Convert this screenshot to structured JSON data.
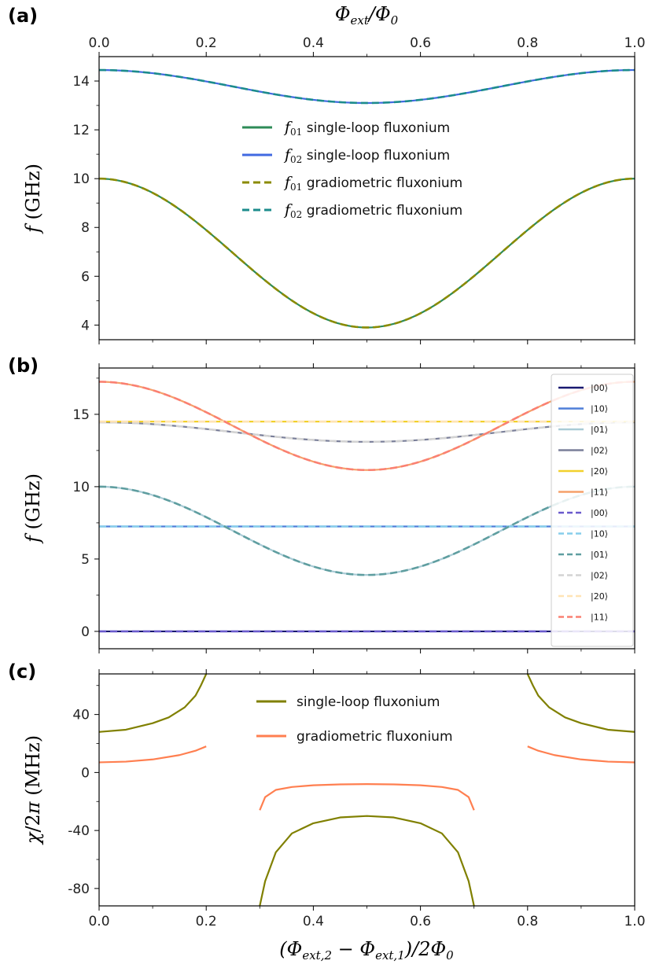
{
  "chart_data": [
    {
      "id": "a",
      "panel_label": "(a)",
      "type": "line",
      "top_xlabel": "Φ_ext/Φ_0",
      "ylabel": "f (GHz)",
      "xlim": [
        0,
        1
      ],
      "ylim": [
        3.4,
        15
      ],
      "xticks": [
        0.0,
        0.2,
        0.4,
        0.6,
        0.8,
        1.0
      ],
      "xtick_labels": [
        "0.0",
        "0.2",
        "0.4",
        "0.6",
        "0.8",
        "1.0"
      ],
      "yticks": [
        4,
        6,
        8,
        10,
        12,
        14
      ],
      "ytick_labels": [
        "4",
        "6",
        "8",
        "10",
        "12",
        "14"
      ],
      "series": [
        {
          "name": "f01 single-loop fluxonium",
          "sub": "01",
          "label": "single-loop fluxonium",
          "color": "#2e8b57",
          "dash": false,
          "formula": "cos",
          "params": [
            3.9,
            10.0
          ]
        },
        {
          "name": "f02 single-loop fluxonium",
          "sub": "02",
          "label": "single-loop fluxonium",
          "color": "#4169e1",
          "dash": false,
          "formula": "cos",
          "params": [
            13.1,
            14.45
          ]
        },
        {
          "name": "f01 gradiometric fluxonium",
          "sub": "01",
          "label": "gradiometric fluxonium",
          "color": "#8b8b00",
          "dash": true,
          "formula": "cos",
          "params": [
            3.9,
            10.0
          ]
        },
        {
          "name": "f02 gradiometric fluxonium",
          "sub": "02",
          "label": "gradiometric fluxonium",
          "color": "#1c8c8c",
          "dash": true,
          "formula": "cos",
          "params": [
            13.1,
            14.45
          ]
        }
      ]
    },
    {
      "id": "b",
      "panel_label": "(b)",
      "type": "line",
      "ylabel": "f (GHz)",
      "xlim": [
        0,
        1
      ],
      "ylim": [
        -1.2,
        18.2
      ],
      "yticks": [
        0,
        5,
        10,
        15
      ],
      "ytick_labels": [
        "0",
        "5",
        "10",
        "15"
      ],
      "series": [
        {
          "name": "|00⟩ solid",
          "label": "|00⟩",
          "color": "#191970",
          "dash": false,
          "formula": "const",
          "params": [
            0
          ]
        },
        {
          "name": "|10⟩ solid",
          "label": "|10⟩",
          "color": "#4f7fd9",
          "dash": false,
          "formula": "const",
          "params": [
            7.25
          ]
        },
        {
          "name": "|01⟩ solid",
          "label": "|01⟩",
          "color": "#a9cbd6",
          "dash": false,
          "formula": "cos",
          "params": [
            3.9,
            10.0
          ]
        },
        {
          "name": "|02⟩ solid",
          "label": "|02⟩",
          "color": "#7a7f99",
          "dash": false,
          "formula": "cos",
          "params": [
            13.1,
            14.45
          ]
        },
        {
          "name": "|20⟩ solid",
          "label": "|20⟩",
          "color": "#f2d12c",
          "dash": false,
          "formula": "const",
          "params": [
            14.5
          ]
        },
        {
          "name": "|11⟩ solid",
          "label": "|11⟩",
          "color": "#f5a06a",
          "dash": false,
          "formula": "cos",
          "params": [
            11.15,
            17.25
          ]
        },
        {
          "name": "|00⟩ dashed",
          "label": "|00⟩",
          "color": "#6a5acd",
          "dash": true,
          "formula": "const",
          "params": [
            0
          ]
        },
        {
          "name": "|10⟩ dashed",
          "label": "|10⟩",
          "color": "#87ceeb",
          "dash": true,
          "formula": "const",
          "params": [
            7.25
          ]
        },
        {
          "name": "|01⟩ dashed",
          "label": "|01⟩",
          "color": "#5f9ea0",
          "dash": true,
          "formula": "cos",
          "params": [
            3.9,
            10.0
          ]
        },
        {
          "name": "|02⟩ dashed",
          "label": "|02⟩",
          "color": "#d3d3d3",
          "dash": true,
          "formula": "cos",
          "params": [
            13.1,
            14.45
          ]
        },
        {
          "name": "|20⟩ dashed",
          "label": "|20⟩",
          "color": "#ffe4b5",
          "dash": true,
          "formula": "const",
          "params": [
            14.5
          ]
        },
        {
          "name": "|11⟩ dashed",
          "label": "|11⟩",
          "color": "#fa8072",
          "dash": true,
          "formula": "cos",
          "params": [
            11.15,
            17.25
          ]
        }
      ]
    },
    {
      "id": "c",
      "panel_label": "(c)",
      "type": "line",
      "xlabel": "(Φ_ext,2 − Φ_ext,1)/2Φ_0",
      "ylabel": "χ/2π (MHz)",
      "xlim": [
        0,
        1
      ],
      "ylim": [
        -92,
        68
      ],
      "xticks": [
        0.0,
        0.2,
        0.4,
        0.6,
        0.8,
        1.0
      ],
      "xtick_labels": [
        "0.0",
        "0.2",
        "0.4",
        "0.6",
        "0.8",
        "1.0"
      ],
      "yticks": [
        40,
        0,
        -40,
        -80
      ],
      "ytick_labels": [
        "40",
        "0",
        "-40",
        "-80"
      ],
      "series": [
        {
          "name": "single-loop fluxonium",
          "label": "single-loop fluxonium",
          "color": "#808000",
          "dash": false,
          "segments": [
            {
              "x": [
                0.0,
                0.05,
                0.1,
                0.13,
                0.16,
                0.18,
                0.19,
                0.2
              ],
              "y": [
                28,
                29.5,
                34,
                38,
                45,
                53,
                60,
                68
              ]
            },
            {
              "x": [
                0.3,
                0.31,
                0.33,
                0.36,
                0.4,
                0.45,
                0.5,
                0.55,
                0.6,
                0.64,
                0.67,
                0.69,
                0.7
              ],
              "y": [
                -92,
                -75,
                -55,
                -42,
                -35,
                -31,
                -30,
                -31,
                -35,
                -42,
                -55,
                -75,
                -92
              ]
            },
            {
              "x": [
                0.8,
                0.81,
                0.82,
                0.84,
                0.87,
                0.9,
                0.95,
                1.0
              ],
              "y": [
                68,
                60,
                53,
                45,
                38,
                34,
                29.5,
                28
              ]
            }
          ]
        },
        {
          "name": "gradiometric fluxonium",
          "label": "gradiometric fluxonium",
          "color": "#ff7f50",
          "dash": false,
          "segments": [
            {
              "x": [
                0.0,
                0.05,
                0.1,
                0.15,
                0.18,
                0.2
              ],
              "y": [
                7,
                7.5,
                9,
                12,
                15,
                18
              ]
            },
            {
              "x": [
                0.3,
                0.31,
                0.33,
                0.36,
                0.4,
                0.45,
                0.5,
                0.55,
                0.6,
                0.64,
                0.67,
                0.69,
                0.7
              ],
              "y": [
                -26,
                -17,
                -12,
                -10,
                -8.8,
                -8.2,
                -8,
                -8.2,
                -8.8,
                -10,
                -12,
                -17,
                -26
              ]
            },
            {
              "x": [
                0.8,
                0.82,
                0.85,
                0.9,
                0.95,
                1.0
              ],
              "y": [
                18,
                15,
                12,
                9,
                7.5,
                7
              ]
            }
          ]
        }
      ]
    }
  ]
}
